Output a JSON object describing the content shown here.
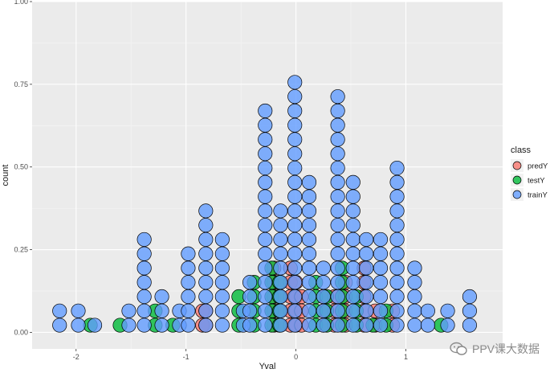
{
  "chart_data": {
    "type": "scatter",
    "subtype": "dotplot",
    "xlabel": "Yval",
    "ylabel": "count",
    "xlim": [
      -2.4,
      1.88
    ],
    "ylim": [
      -0.05,
      1.0
    ],
    "x_ticks": [
      -2,
      -1,
      0,
      1
    ],
    "x_tick_labels": [
      "-2",
      "-1",
      "0",
      "1"
    ],
    "y_ticks": [
      0.0,
      0.25,
      0.5,
      0.75,
      1.0
    ],
    "y_tick_labels": [
      "0.00",
      "0.25",
      "0.50",
      "0.75",
      "1.00"
    ],
    "grid": true,
    "background": "#ebebeb",
    "legend": {
      "title": "class",
      "position": "right"
    },
    "dot_step": 0.0432,
    "series": [
      {
        "name": "predY",
        "color": "#f8766d",
        "stacks": [
          {
            "x": -0.85,
            "count": 2
          },
          {
            "x": -0.82,
            "count": 2
          },
          {
            "x": -0.2,
            "count": 5
          },
          {
            "x": -0.15,
            "count": 4
          },
          {
            "x": -0.05,
            "count": 5
          },
          {
            "x": 0.0,
            "count": 4
          },
          {
            "x": 0.05,
            "count": 3
          },
          {
            "x": 0.25,
            "count": 3
          },
          {
            "x": 0.35,
            "count": 3
          },
          {
            "x": 0.45,
            "count": 4
          },
          {
            "x": 0.62,
            "count": 5
          },
          {
            "x": 0.72,
            "count": 2
          },
          {
            "x": 0.88,
            "count": 2
          }
        ]
      },
      {
        "name": "testY",
        "color": "#00ba38",
        "stacks": [
          {
            "x": -1.87,
            "count": 1
          },
          {
            "x": -1.6,
            "count": 1
          },
          {
            "x": -1.28,
            "count": 2
          },
          {
            "x": -1.12,
            "count": 1
          },
          {
            "x": -0.52,
            "count": 3
          },
          {
            "x": -0.38,
            "count": 4
          },
          {
            "x": -0.22,
            "count": 5
          },
          {
            "x": -0.15,
            "count": 4
          },
          {
            "x": 0.18,
            "count": 4
          },
          {
            "x": 0.28,
            "count": 3
          },
          {
            "x": 0.42,
            "count": 5
          },
          {
            "x": 0.55,
            "count": 3
          },
          {
            "x": 0.7,
            "count": 1
          },
          {
            "x": 0.82,
            "count": 2
          },
          {
            "x": 1.32,
            "count": 1
          }
        ]
      },
      {
        "name": "trainY",
        "color": "#619cff",
        "stacks": [
          {
            "x": -2.15,
            "count": 2
          },
          {
            "x": -1.98,
            "count": 2
          },
          {
            "x": -1.83,
            "count": 1
          },
          {
            "x": -1.52,
            "count": 2
          },
          {
            "x": -1.38,
            "count": 7
          },
          {
            "x": -1.22,
            "count": 3
          },
          {
            "x": -1.06,
            "count": 2
          },
          {
            "x": -0.98,
            "count": 6
          },
          {
            "x": -0.82,
            "count": 9
          },
          {
            "x": -0.67,
            "count": 7
          },
          {
            "x": -0.48,
            "count": 2
          },
          {
            "x": -0.42,
            "count": 4
          },
          {
            "x": -0.28,
            "count": 16
          },
          {
            "x": -0.14,
            "count": 9
          },
          {
            "x": -0.01,
            "count": 18
          },
          {
            "x": 0.12,
            "count": 11
          },
          {
            "x": 0.25,
            "count": 5
          },
          {
            "x": 0.38,
            "count": 17
          },
          {
            "x": 0.52,
            "count": 11
          },
          {
            "x": 0.64,
            "count": 7
          },
          {
            "x": 0.77,
            "count": 7
          },
          {
            "x": 0.92,
            "count": 12
          },
          {
            "x": 1.08,
            "count": 5
          },
          {
            "x": 1.2,
            "count": 2
          },
          {
            "x": 1.38,
            "count": 2
          },
          {
            "x": 1.58,
            "count": 3
          }
        ]
      }
    ]
  },
  "watermark": {
    "text": "PPV课大数据"
  }
}
